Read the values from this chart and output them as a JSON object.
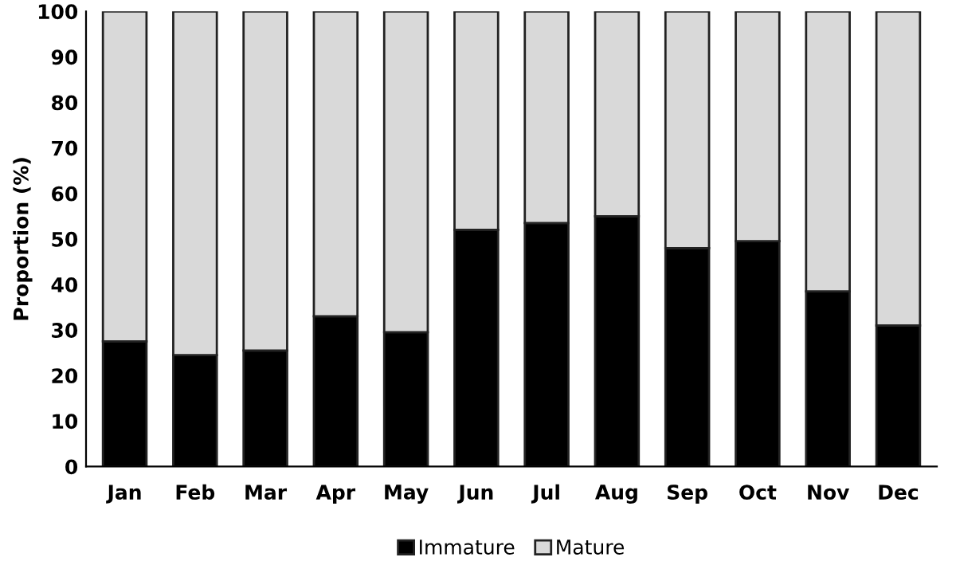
{
  "chart_data": {
    "type": "bar",
    "stacked": true,
    "ylabel": "Proportion (%)",
    "categories": [
      "Jan",
      "Feb",
      "Mar",
      "Apr",
      "May",
      "Jun",
      "Jul",
      "Aug",
      "Sep",
      "Oct",
      "Nov",
      "Dec"
    ],
    "series": [
      {
        "name": "Immature",
        "color": "#000000",
        "values": [
          27.5,
          24.5,
          25.5,
          33,
          29.5,
          52,
          53.5,
          55,
          48,
          49.5,
          38.5,
          31
        ]
      },
      {
        "name": "Mature",
        "color": "#d9d9d9",
        "values": [
          72.5,
          75.5,
          74.5,
          67,
          70.5,
          48,
          46.5,
          45,
          52,
          50.5,
          61.5,
          69
        ]
      }
    ],
    "ylim": [
      0,
      100
    ],
    "yticks": [
      0,
      10,
      20,
      30,
      40,
      50,
      60,
      70,
      80,
      90,
      100
    ],
    "grid": false,
    "legend": "bottom"
  }
}
